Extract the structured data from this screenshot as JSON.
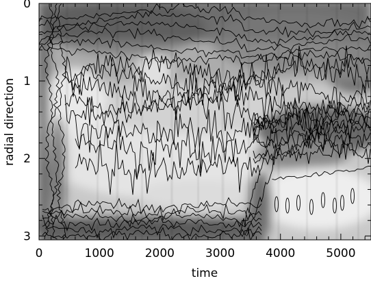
{
  "chart_data": {
    "type": "heatmap",
    "title": "",
    "xlabel": "time",
    "ylabel": "radial direction",
    "xlim": [
      0,
      5500
    ],
    "ylim": [
      3.05,
      0
    ],
    "x_ticks": [
      "0",
      "1000",
      "2000",
      "3000",
      "4000",
      "5000"
    ],
    "x_tick_values": [
      0,
      1000,
      2000,
      3000,
      4000,
      5000
    ],
    "y_ticks": [
      "0",
      "1",
      "2",
      "3"
    ],
    "y_tick_values": [
      0,
      1,
      2,
      3
    ],
    "colormap": "grayscale (dark = high, light = low)",
    "contours": true,
    "features": [
      {
        "label": "dark boundary band near radial 0-0.8",
        "x_range": [
          0,
          5500
        ],
        "y_range": [
          0,
          0.8
        ]
      },
      {
        "label": "light low-intensity region",
        "x_range": [
          400,
          3500
        ],
        "y_range": [
          1.2,
          2.7
        ]
      },
      {
        "label": "dark oscillating band",
        "x_range": [
          3500,
          5500
        ],
        "y_range": [
          1.4,
          2.0
        ]
      },
      {
        "label": "light lower-right region",
        "x_range": [
          3700,
          5500
        ],
        "y_range": [
          2.1,
          3.0
        ]
      },
      {
        "label": "dark bottom band",
        "x_range": [
          0,
          3700
        ],
        "y_range": [
          2.7,
          3.05
        ]
      }
    ]
  }
}
